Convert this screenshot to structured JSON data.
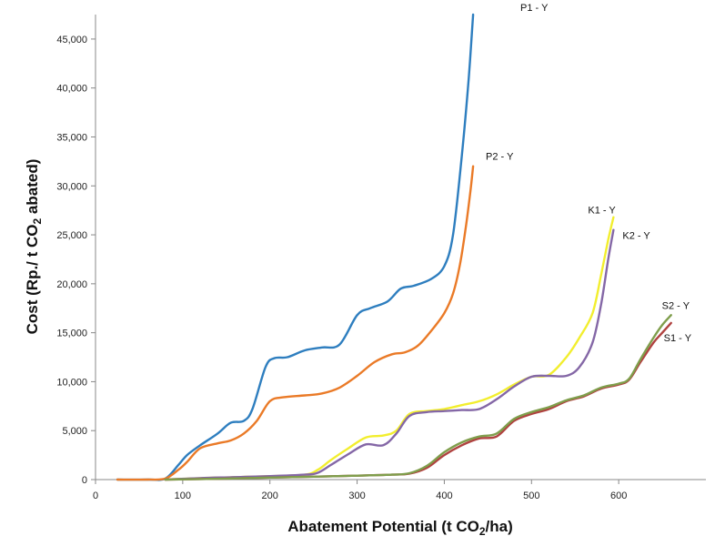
{
  "chart_data": {
    "type": "line",
    "title": "",
    "xlabel": {
      "prefix": "Abatement Potential (t CO",
      "sub": "2",
      "suffix": "/ha)"
    },
    "ylabel": {
      "prefix": "Cost (Rp./ t CO",
      "sub": "2",
      "suffix": " abated)"
    },
    "xlim": [
      0,
      700
    ],
    "ylim": [
      0,
      47500
    ],
    "xticks": [
      0,
      100,
      200,
      300,
      400,
      500,
      600
    ],
    "xtick_labels": [
      "0",
      "100",
      "200",
      "300",
      "400",
      "500",
      "600"
    ],
    "yticks": [
      0,
      5000,
      10000,
      15000,
      20000,
      25000,
      30000,
      35000,
      40000,
      45000
    ],
    "ytick_labels": [
      "0",
      "5,000",
      "10,000",
      "15,000",
      "20,000",
      "25,000",
      "30,000",
      "35,000",
      "40,000",
      "45,000"
    ],
    "grid": false,
    "legend": "none (series labelled at line ends)",
    "series": [
      {
        "name": "P1 - Y",
        "color": "#2e7ebf",
        "x": [
          25,
          60,
          80,
          95,
          105,
          120,
          140,
          155,
          170,
          180,
          195,
          205,
          220,
          240,
          260,
          280,
          300,
          315,
          335,
          350,
          365,
          385,
          400,
          410,
          420,
          428,
          433
        ],
        "y": [
          0,
          0,
          100,
          1500,
          2500,
          3500,
          4700,
          5800,
          6000,
          7200,
          11500,
          12400,
          12500,
          13200,
          13500,
          13800,
          16800,
          17500,
          18200,
          19500,
          19800,
          20500,
          21800,
          25000,
          33000,
          41000,
          47500
        ]
      },
      {
        "name": "P2 - Y",
        "color": "#ea7a27",
        "x": [
          25,
          60,
          80,
          95,
          105,
          120,
          140,
          155,
          170,
          185,
          200,
          215,
          240,
          260,
          280,
          300,
          320,
          340,
          355,
          370,
          385,
          400,
          410,
          418,
          425,
          430,
          433
        ],
        "y": [
          0,
          0,
          100,
          1000,
          1800,
          3200,
          3700,
          4000,
          4700,
          6000,
          8000,
          8400,
          8600,
          8800,
          9400,
          10600,
          12000,
          12800,
          13000,
          13700,
          15200,
          17000,
          19000,
          22000,
          26000,
          29500,
          32000
        ]
      },
      {
        "name": "K1 - Y",
        "color": "#f2ee2e",
        "x": [
          80,
          120,
          160,
          200,
          240,
          255,
          270,
          290,
          310,
          330,
          345,
          360,
          380,
          400,
          420,
          440,
          460,
          480,
          500,
          520,
          540,
          555,
          570,
          580,
          588,
          594
        ],
        "y": [
          0,
          150,
          250,
          350,
          500,
          1000,
          2000,
          3200,
          4300,
          4500,
          5000,
          6700,
          7000,
          7200,
          7600,
          8000,
          8700,
          9700,
          10500,
          10700,
          12500,
          14500,
          17000,
          21000,
          24500,
          26800
        ]
      },
      {
        "name": "K2 - Y",
        "color": "#8467a6",
        "x": [
          80,
          120,
          160,
          200,
          240,
          255,
          270,
          290,
          310,
          330,
          345,
          360,
          380,
          400,
          420,
          440,
          460,
          480,
          500,
          520,
          540,
          555,
          570,
          580,
          588,
          594
        ],
        "y": [
          0,
          150,
          250,
          350,
          500,
          700,
          1500,
          2600,
          3600,
          3500,
          4700,
          6500,
          6900,
          7000,
          7100,
          7200,
          8200,
          9500,
          10500,
          10600,
          10600,
          11500,
          14000,
          18000,
          22500,
          25500
        ]
      },
      {
        "name": "S1 - Y",
        "color": "#b04240",
        "x": [
          80,
          150,
          200,
          250,
          300,
          340,
          360,
          380,
          400,
          420,
          440,
          460,
          480,
          500,
          520,
          540,
          560,
          580,
          600,
          612,
          625,
          640,
          650,
          660
        ],
        "y": [
          0,
          100,
          200,
          300,
          400,
          500,
          600,
          1200,
          2500,
          3500,
          4200,
          4400,
          6000,
          6700,
          7200,
          8000,
          8500,
          9300,
          9700,
          10200,
          12000,
          14000,
          15000,
          16000
        ]
      },
      {
        "name": "S2 - Y",
        "color": "#7f9e4c",
        "x": [
          80,
          150,
          200,
          250,
          300,
          340,
          360,
          380,
          400,
          420,
          440,
          460,
          480,
          500,
          520,
          540,
          560,
          580,
          600,
          612,
          625,
          640,
          650,
          660
        ],
        "y": [
          0,
          100,
          200,
          300,
          400,
          500,
          650,
          1400,
          2800,
          3800,
          4400,
          4700,
          6200,
          6900,
          7400,
          8100,
          8600,
          9400,
          9800,
          10300,
          12300,
          14500,
          15800,
          16800
        ]
      }
    ],
    "labels": [
      {
        "text": "P1 - Y",
        "x": 433,
        "y": 47500
      },
      {
        "text": "P2 - Y",
        "x": 433,
        "y": 32000
      },
      {
        "text": "K1 - Y",
        "x": 594,
        "y": 26800
      },
      {
        "text": "K2 - Y",
        "x": 594,
        "y": 25500
      },
      {
        "text": "S2 - Y",
        "x": 660,
        "y": 16800
      },
      {
        "text": "S1 - Y",
        "x": 660,
        "y": 16000
      }
    ]
  }
}
